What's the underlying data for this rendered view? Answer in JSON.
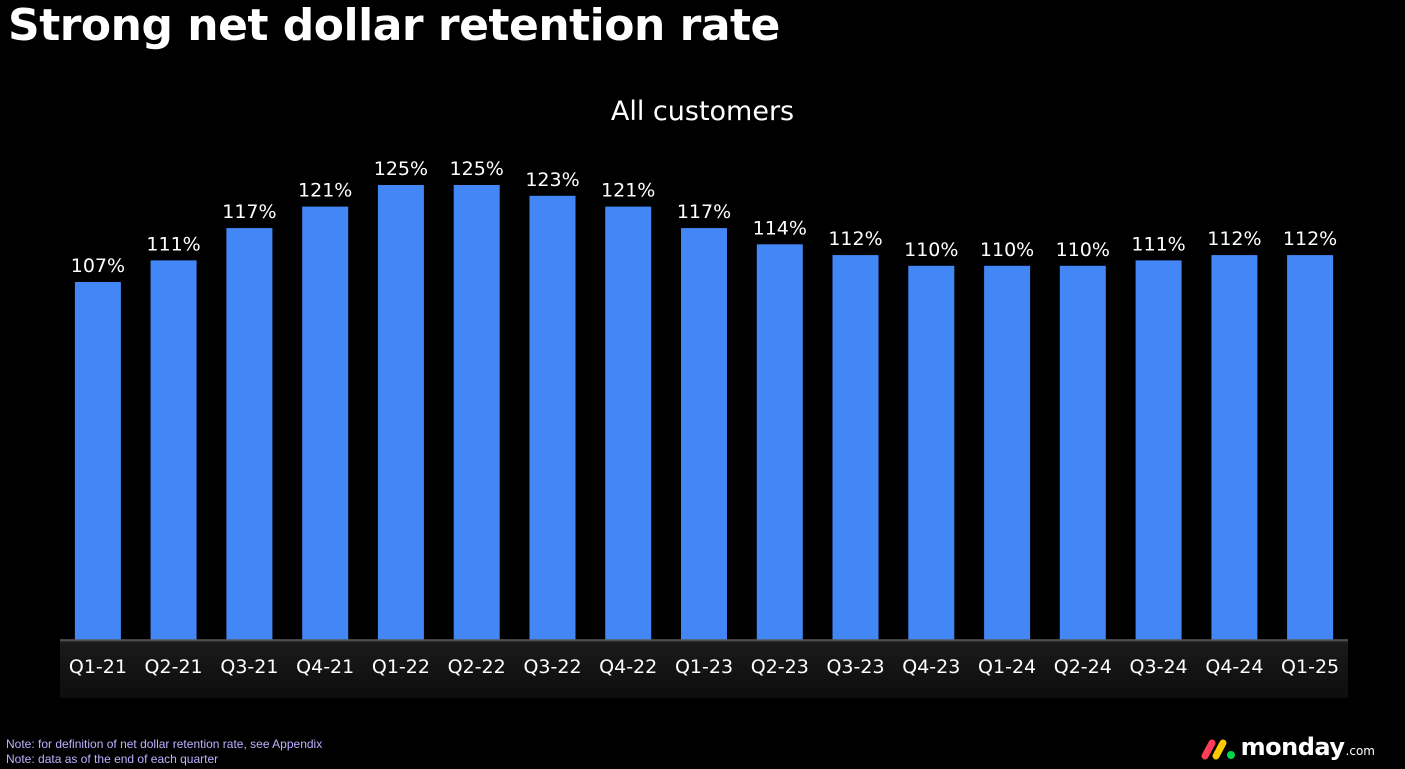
{
  "slide": {
    "title": "Strong net dollar retention rate",
    "notes": [
      "Note: for definition of net dollar retention rate, see Appendix",
      "Note: data as of the end of each quarter"
    ],
    "logo": {
      "word": "monday",
      "suffix": ".com",
      "colors": [
        "#ff3d57",
        "#ffcb00",
        "#00d647"
      ]
    }
  },
  "chart_data": {
    "type": "bar",
    "title": "All customers",
    "categories": [
      "Q1-21",
      "Q2-21",
      "Q3-21",
      "Q4-21",
      "Q1-22",
      "Q2-22",
      "Q3-22",
      "Q4-22",
      "Q1-23",
      "Q2-23",
      "Q3-23",
      "Q4-23",
      "Q1-24",
      "Q2-24",
      "Q3-24",
      "Q4-24",
      "Q1-25"
    ],
    "values": [
      107,
      111,
      117,
      121,
      125,
      125,
      123,
      121,
      117,
      114,
      112,
      110,
      110,
      110,
      111,
      112,
      112
    ],
    "value_labels": [
      "107%",
      "111%",
      "117%",
      "121%",
      "125%",
      "125%",
      "123%",
      "121%",
      "117%",
      "114%",
      "112%",
      "110%",
      "110%",
      "110%",
      "111%",
      "112%",
      "112%"
    ],
    "unit": "%",
    "bar_color": "#4287f5",
    "background": "#000000",
    "grid": false,
    "legend": "none"
  }
}
